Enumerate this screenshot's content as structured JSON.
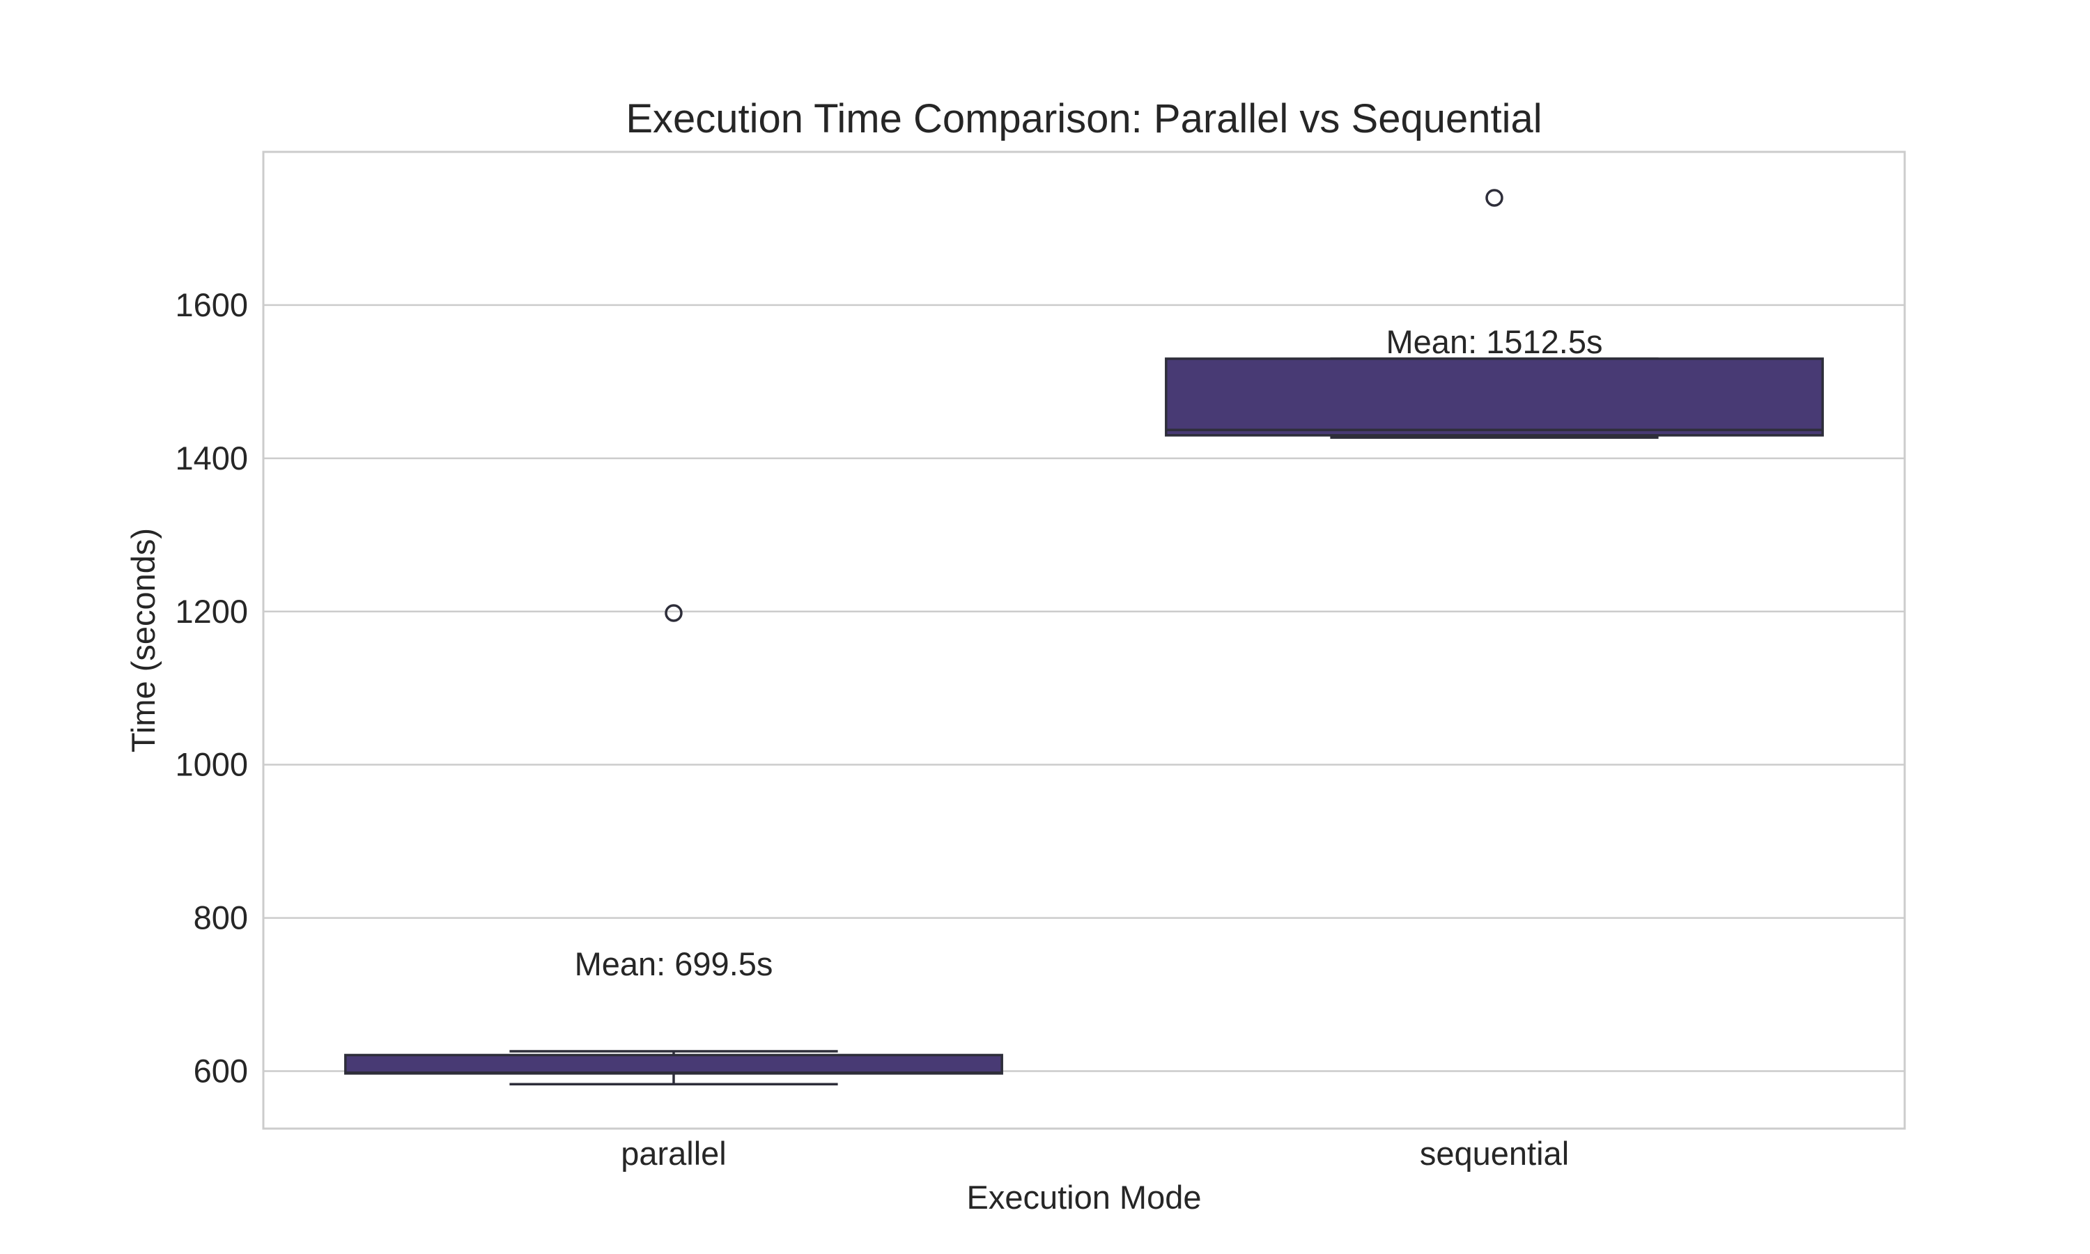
{
  "chart_data": {
    "type": "box",
    "title": "Execution Time Comparison: Parallel vs Sequential",
    "xlabel": "Execution Mode",
    "ylabel": "Time (seconds)",
    "categories": [
      "parallel",
      "sequential"
    ],
    "ylim": [
      525,
      1800
    ],
    "yticks": [
      600,
      800,
      1000,
      1200,
      1400,
      1600
    ],
    "grid": true,
    "box_color": "#483a74",
    "edge_color": "#2e2e3a",
    "grid_color": "#cccccc",
    "series": [
      {
        "category": "parallel",
        "whisker_low": 583,
        "q1": 597,
        "median": 598,
        "q3": 621,
        "whisker_high": 626,
        "outliers": [
          1198
        ],
        "mean": 699.5
      },
      {
        "category": "sequential",
        "whisker_low": 1427,
        "q1": 1430,
        "median": 1437,
        "q3": 1530,
        "whisker_high": 1530,
        "outliers": [
          1740
        ],
        "mean": 1512.5
      }
    ],
    "annotations": [
      {
        "text": "Mean: 699.5s",
        "category": "parallel",
        "y": 725
      },
      {
        "text": "Mean: 1512.5s",
        "category": "sequential",
        "y": 1537
      }
    ]
  }
}
